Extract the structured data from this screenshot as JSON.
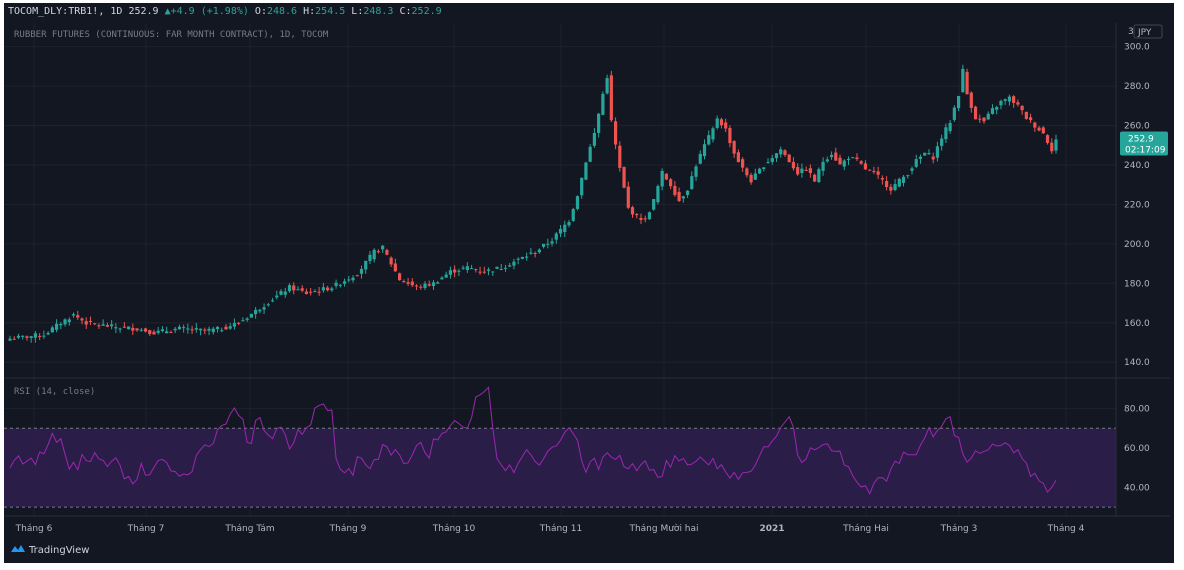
{
  "header": {
    "symbol": "TOCOM_DLY:TRB1!",
    "interval": "1D",
    "last": "252.9",
    "change": "+4.9 (+1.98%)",
    "ohlc": {
      "o": "248.6",
      "h": "254.5",
      "l": "248.3",
      "c": "252.9"
    }
  },
  "subtitle": "RUBBER FUTURES (CONTINUOUS: FAR MONTH CONTRACT), 1D, TOCOM",
  "currency": "JPY",
  "corner_mark": "3",
  "price_tag": {
    "value": "252.9",
    "time": "02:17:09"
  },
  "rsi_label": "RSI (14, close)",
  "brand": "TradingView",
  "colors": {
    "bg": "#131722",
    "up": "#26a69a",
    "down": "#ef5350",
    "rsi_line": "#9c27b0",
    "rsi_band": "#2a1d48",
    "text": "#d1d4dc"
  },
  "chart_data": [
    {
      "type": "candlestick",
      "title": "RUBBER FUTURES (CONTINUOUS: FAR MONTH CONTRACT), 1D, TOCOM",
      "ylim": [
        132,
        312
      ],
      "yticks": [
        "300.0",
        "280.0",
        "260.0",
        "240.0",
        "220.0",
        "200.0",
        "180.0",
        "160.0",
        "140.0"
      ],
      "xticks": [
        "Tháng 6",
        "Tháng 7",
        "Tháng Tám",
        "Tháng 9",
        "Tháng 10",
        "Tháng 11",
        "Tháng Mười hai",
        "2021",
        "Tháng Hai",
        "Tháng 3",
        "Tháng 4"
      ],
      "close_anchors": [
        [
          0,
          152
        ],
        [
          8,
          154
        ],
        [
          12,
          160
        ],
        [
          15,
          164
        ],
        [
          18,
          160
        ],
        [
          24,
          158
        ],
        [
          30,
          157
        ],
        [
          34,
          155
        ],
        [
          40,
          157
        ],
        [
          46,
          156
        ],
        [
          50,
          157
        ],
        [
          54,
          160
        ],
        [
          58,
          166
        ],
        [
          62,
          172
        ],
        [
          66,
          178
        ],
        [
          70,
          175
        ],
        [
          76,
          178
        ],
        [
          82,
          185
        ],
        [
          86,
          196
        ],
        [
          88,
          198
        ],
        [
          90,
          190
        ],
        [
          92,
          182
        ],
        [
          96,
          178
        ],
        [
          100,
          180
        ],
        [
          104,
          186
        ],
        [
          108,
          188
        ],
        [
          112,
          186
        ],
        [
          116,
          188
        ],
        [
          120,
          192
        ],
        [
          124,
          196
        ],
        [
          128,
          202
        ],
        [
          132,
          212
        ],
        [
          134,
          225
        ],
        [
          136,
          242
        ],
        [
          138,
          256
        ],
        [
          139,
          266
        ],
        [
          140,
          276
        ],
        [
          141,
          285
        ],
        [
          142,
          262
        ],
        [
          144,
          238
        ],
        [
          146,
          218
        ],
        [
          148,
          214
        ],
        [
          150,
          212
        ],
        [
          152,
          222
        ],
        [
          154,
          236
        ],
        [
          156,
          230
        ],
        [
          158,
          222
        ],
        [
          160,
          228
        ],
        [
          162,
          240
        ],
        [
          164,
          250
        ],
        [
          166,
          258
        ],
        [
          167,
          264
        ],
        [
          169,
          258
        ],
        [
          171,
          246
        ],
        [
          173,
          238
        ],
        [
          175,
          232
        ],
        [
          178,
          240
        ],
        [
          180,
          244
        ],
        [
          182,
          248
        ],
        [
          184,
          242
        ],
        [
          186,
          236
        ],
        [
          188,
          238
        ],
        [
          190,
          232
        ],
        [
          192,
          242
        ],
        [
          194,
          246
        ],
        [
          196,
          240
        ],
        [
          198,
          244
        ],
        [
          200,
          242
        ],
        [
          202,
          238
        ],
        [
          204,
          236
        ],
        [
          206,
          232
        ],
        [
          208,
          228
        ],
        [
          210,
          232
        ],
        [
          212,
          236
        ],
        [
          214,
          242
        ],
        [
          216,
          246
        ],
        [
          218,
          244
        ],
        [
          220,
          254
        ],
        [
          222,
          262
        ],
        [
          224,
          276
        ],
        [
          225,
          288
        ],
        [
          226,
          276
        ],
        [
          228,
          264
        ],
        [
          230,
          262
        ],
        [
          232,
          268
        ],
        [
          234,
          272
        ],
        [
          236,
          274
        ],
        [
          238,
          270
        ],
        [
          240,
          264
        ],
        [
          242,
          260
        ],
        [
          244,
          256
        ],
        [
          246,
          248
        ],
        [
          247,
          252.9
        ]
      ],
      "price_tag": 252.9
    },
    {
      "type": "line",
      "title": "RSI (14, close)",
      "ylim": [
        26,
        94
      ],
      "yticks": [
        "80.00",
        "60.00",
        "40.00"
      ],
      "bands": [
        70,
        30
      ],
      "x_count": 248,
      "y": [
        50.0,
        53.7,
        56.0,
        51.9,
        53.3,
        54.8,
        51.6,
        57.9,
        57.1,
        61.7,
        67.4,
        62.9,
        64.7,
        56.7,
        49.3,
        52.8,
        49.0,
        56.7,
        53.6,
        53.1,
        57.6,
        54.4,
        53.7,
        50.5,
        53.3,
        55.0,
        51.2,
        44.3,
        45.6,
        41.8,
        44.0,
        52.2,
        46.2,
        46.4,
        50.2,
        53.7,
        54.2,
        52.6,
        48.4,
        48.0,
        45.7,
        46.8,
        46.4,
        48.0,
        56.3,
        59.2,
        61.6,
        60.7,
        62.3,
        69.3,
        71.4,
        72.2,
        77.2,
        80.3,
        76.5,
        74.6,
        63.0,
        62.2,
        73.9,
        75.5,
        68.9,
        66.6,
        64.7,
        69.9,
        70.6,
        66.7,
        59.5,
        62.6,
        69.4,
        66.9,
        70.3,
        71.7,
        80.3,
        81.6,
        82.4,
        79.0,
        79.3,
        54.5,
        49.3,
        47.4,
        49.6,
        46.1,
        55.6,
        54.8,
        51.5,
        49.5,
        54.1,
        54.2,
        61.8,
        60.6,
        56.4,
        59.2,
        56.5,
        52.1,
        52.5,
        56.5,
        61.2,
        62.9,
        57.6,
        54.9,
        64.6,
        64.1,
        67.4,
        68.2,
        71.4,
        73.9,
        72.4,
        70.6,
        70.1,
        75.5,
        85.9,
        87.0,
        88.6,
        90.8,
        70.0,
        54.6,
        51.5,
        48.5,
        51.5,
        47.5,
        52.3,
        55.7,
        59.2,
        56.5,
        53.2,
        51.3,
        54.6,
        58.4,
        60.4,
        61.0,
        63.9,
        67.9,
        70.3,
        67.3,
        64.0,
        53.5,
        47.6,
        53.0,
        54.8,
        49.1,
        55.4,
        57.6,
        55.4,
        54.2,
        56.3,
        50.5,
        49.5,
        52.1,
        48.5,
        51.6,
        53.5,
        48.7,
        49.1,
        45.1,
        45.5,
        53.6,
        50.2,
        56.1,
        53.4,
        54.7,
        51.4,
        51.8,
        53.2,
        55.5,
        53.4,
        51.4,
        54.7,
        49.4,
        51.6,
        47.8,
        44.7,
        47.6,
        44.1,
        47.4,
        47.6,
        48.2,
        51.3,
        56.1,
        60.7,
        60.5,
        63.6,
        66.0,
        70.4,
        73.2,
        75.9,
        70.5,
        56.3,
        52.6,
        54.5,
        60.1,
        59.1,
        60.2,
        61.7,
        62.2,
        58.6,
        58.3,
        58.4,
        51.3,
        50.5,
        46.0,
        42.6,
        40.2,
        40.9,
        36.8,
        42.1,
        44.9,
        45.0,
        43.2,
        49.2,
        53.3,
        52.2,
        57.9,
        56.6,
        56.6,
        56.6,
        61.5,
        65.0,
        70.3,
        65.7,
        68.9,
        71.0,
        74.8,
        75.9,
        66.3,
        65.4,
        57.0,
        52.8,
        55.0,
        58.6,
        57.3,
        58.3,
        59.1,
        62.0,
        61.0,
        61.2,
        62.7,
        61.3,
        57.5,
        59.2,
        54.7,
        52.3,
        45.6,
        47.2,
        43.3,
        42.1,
        37.6,
        40.1,
        43.6
      ]
    }
  ]
}
